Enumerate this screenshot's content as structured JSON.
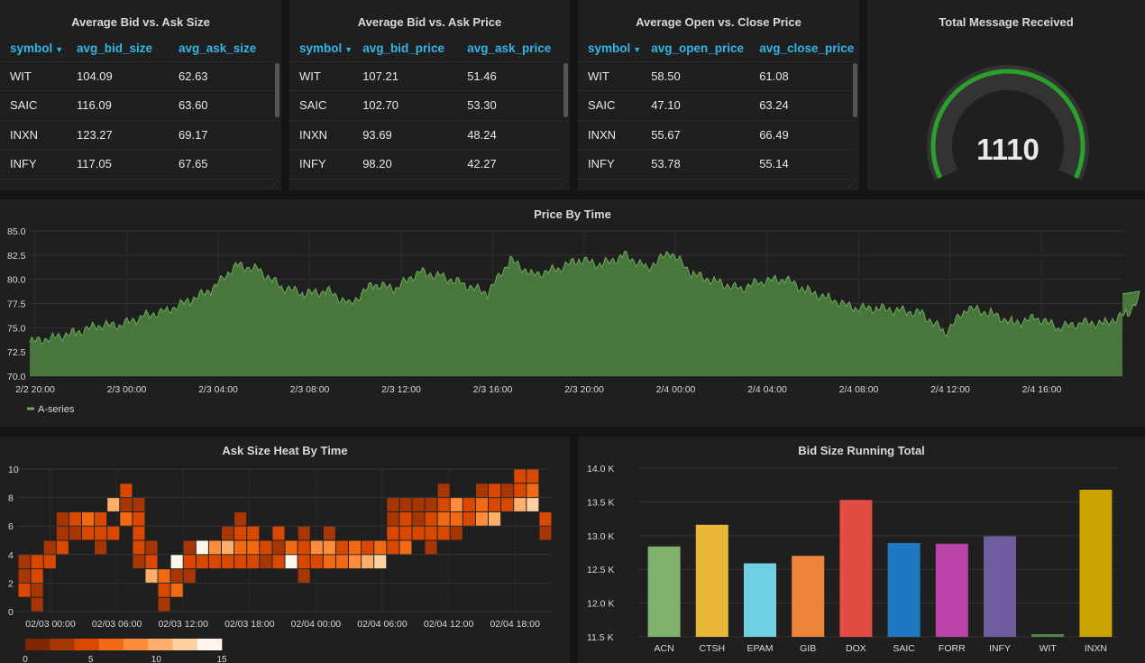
{
  "tables": [
    {
      "title": "Average Bid vs. Ask Size",
      "columns": [
        "symbol",
        "avg_bid_size",
        "avg_ask_size"
      ],
      "rows": [
        [
          "WIT",
          "104.09",
          "62.63"
        ],
        [
          "SAIC",
          "116.09",
          "63.60"
        ],
        [
          "INXN",
          "123.27",
          "69.17"
        ],
        [
          "INFY",
          "117.05",
          "67.65"
        ]
      ]
    },
    {
      "title": "Average Bid vs. Ask Price",
      "columns": [
        "symbol",
        "avg_bid_price",
        "avg_ask_price"
      ],
      "rows": [
        [
          "WIT",
          "107.21",
          "51.46"
        ],
        [
          "SAIC",
          "102.70",
          "53.30"
        ],
        [
          "INXN",
          "93.69",
          "48.24"
        ],
        [
          "INFY",
          "98.20",
          "42.27"
        ]
      ]
    },
    {
      "title": "Average Open vs. Close Price",
      "columns": [
        "symbol",
        "avg_open_price",
        "avg_close_price"
      ],
      "rows": [
        [
          "WIT",
          "58.50",
          "61.08"
        ],
        [
          "SAIC",
          "47.10",
          "63.24"
        ],
        [
          "INXN",
          "55.67",
          "66.49"
        ],
        [
          "INFY",
          "53.78",
          "55.14"
        ]
      ]
    }
  ],
  "gauge": {
    "title": "Total Message Received",
    "value": "1110",
    "fraction": 1.0,
    "color": "#2ca02c"
  },
  "colors": {
    "line_fill": "#508642",
    "line_stroke": "#6ea959"
  },
  "chart_data": [
    {
      "type": "area",
      "title": "Price By Time",
      "x_ticks": [
        "2/2 20:00",
        "2/3 00:00",
        "2/3 04:00",
        "2/3 08:00",
        "2/3 12:00",
        "2/3 16:00",
        "2/3 20:00",
        "2/4 00:00",
        "2/4 04:00",
        "2/4 08:00",
        "2/4 12:00",
        "2/4 16:00"
      ],
      "y_ticks": [
        "70.0",
        "72.5",
        "75.0",
        "77.5",
        "80.0",
        "82.5",
        "85.0"
      ],
      "ylim": [
        70,
        85
      ],
      "legend": "bottom-left",
      "series": [
        {
          "name": "A-series",
          "color": "#6ea959",
          "time_hours_from_start": [
            0,
            1,
            2,
            3,
            4,
            5,
            6,
            7,
            8,
            9,
            10,
            11,
            12,
            13,
            14,
            15,
            16,
            17,
            18,
            19,
            20,
            21,
            22,
            23,
            24,
            25,
            26,
            27,
            28,
            29,
            30,
            31,
            32,
            33,
            34,
            35,
            36,
            37,
            38,
            39,
            40,
            41,
            42,
            43,
            44,
            45,
            46,
            47,
            48,
            48.6
          ],
          "values": [
            73.5,
            74.0,
            74.5,
            75.2,
            75.3,
            76.2,
            76.8,
            77.8,
            79.0,
            81.5,
            81.0,
            79.2,
            78.5,
            78.8,
            77.5,
            79.5,
            79.0,
            80.8,
            80.3,
            79.5,
            78.5,
            82.0,
            80.5,
            81.0,
            82.0,
            81.5,
            82.5,
            81.2,
            82.8,
            80.5,
            79.8,
            79.0,
            79.8,
            80.0,
            78.8,
            78.0,
            77.0,
            77.0,
            76.8,
            76.5,
            74.5,
            77.0,
            76.5,
            75.5,
            76.0,
            75.0,
            75.5,
            75.5,
            76.5,
            78.5
          ]
        }
      ]
    },
    {
      "type": "heatmap",
      "title": "Ask Size Heat By Time",
      "x_ticks": [
        "02/03 00:00",
        "02/03 06:00",
        "02/03 12:00",
        "02/03 18:00",
        "02/04 00:00",
        "02/04 06:00",
        "02/04 12:00",
        "02/04 18:00"
      ],
      "y_ticks": [
        "0",
        "2",
        "4",
        "6",
        "8",
        "10"
      ],
      "ylim": [
        0,
        10
      ],
      "legend": "bottom-left",
      "color_scale": {
        "min": 0,
        "max": 15,
        "ticks": [
          "0",
          "5",
          "10",
          "15"
        ],
        "colors": [
          "#7f2704",
          "#a63603",
          "#d94801",
          "#f16913",
          "#fd8d3c",
          "#fdae6b",
          "#fdd0a2",
          "#fff5eb"
        ]
      },
      "columns": [
        [
          [
            3,
            2
          ],
          [
            2,
            3
          ],
          [
            1,
            4
          ]
        ],
        [
          [
            0,
            2
          ],
          [
            1,
            3
          ],
          [
            2,
            4
          ],
          [
            3,
            5
          ]
        ],
        [
          [
            4,
            3
          ],
          [
            3,
            5
          ]
        ],
        [
          [
            4,
            4
          ],
          [
            5,
            3
          ],
          [
            6,
            2
          ]
        ],
        [
          [
            5,
            3
          ],
          [
            6,
            5
          ]
        ],
        [
          [
            5,
            4
          ],
          [
            6,
            6
          ]
        ],
        [
          [
            4,
            3
          ],
          [
            5,
            4
          ],
          [
            6,
            5
          ]
        ],
        [
          [
            5,
            5
          ],
          [
            7,
            10
          ]
        ],
        [
          [
            6,
            6
          ],
          [
            7,
            3
          ],
          [
            8,
            4
          ]
        ],
        [
          [
            3,
            2
          ],
          [
            4,
            4
          ],
          [
            5,
            5
          ],
          [
            6,
            4
          ],
          [
            7,
            3
          ]
        ],
        [
          [
            3,
            5
          ],
          [
            4,
            3
          ],
          [
            2,
            10
          ]
        ],
        [
          [
            1,
            4
          ],
          [
            2,
            6
          ],
          [
            0,
            3
          ]
        ],
        [
          [
            1,
            6
          ],
          [
            2,
            3
          ],
          [
            3,
            14
          ]
        ],
        [
          [
            2,
            3
          ],
          [
            3,
            5
          ],
          [
            4,
            2
          ]
        ],
        [
          [
            3,
            5
          ],
          [
            4,
            15
          ]
        ],
        [
          [
            3,
            5
          ],
          [
            4,
            9
          ]
        ],
        [
          [
            3,
            4
          ],
          [
            4,
            10
          ],
          [
            5,
            3
          ]
        ],
        [
          [
            3,
            5
          ],
          [
            4,
            7
          ],
          [
            5,
            4
          ],
          [
            6,
            2
          ]
        ],
        [
          [
            3,
            4
          ],
          [
            4,
            6
          ],
          [
            5,
            5
          ]
        ],
        [
          [
            3,
            3
          ],
          [
            4,
            4
          ]
        ],
        [
          [
            3,
            4
          ],
          [
            4,
            3
          ],
          [
            5,
            4
          ]
        ],
        [
          [
            3,
            15
          ],
          [
            4,
            6
          ]
        ],
        [
          [
            2,
            3
          ],
          [
            3,
            5
          ],
          [
            4,
            4
          ],
          [
            5,
            3
          ]
        ],
        [
          [
            3,
            5
          ],
          [
            4,
            9
          ]
        ],
        [
          [
            3,
            6
          ],
          [
            4,
            8
          ],
          [
            5,
            3
          ]
        ],
        [
          [
            3,
            7
          ],
          [
            4,
            5
          ]
        ],
        [
          [
            3,
            8
          ],
          [
            4,
            6
          ]
        ],
        [
          [
            3,
            11
          ],
          [
            4,
            5
          ]
        ],
        [
          [
            3,
            13
          ],
          [
            4,
            6
          ]
        ],
        [
          [
            4,
            5
          ],
          [
            5,
            4
          ],
          [
            6,
            3
          ],
          [
            7,
            2
          ]
        ],
        [
          [
            4,
            6
          ],
          [
            5,
            4
          ],
          [
            6,
            5
          ],
          [
            7,
            3
          ]
        ],
        [
          [
            5,
            4
          ],
          [
            6,
            3
          ],
          [
            7,
            2
          ]
        ],
        [
          [
            4,
            3
          ],
          [
            5,
            5
          ],
          [
            6,
            4
          ],
          [
            7,
            3
          ]
        ],
        [
          [
            5,
            4
          ],
          [
            6,
            6
          ],
          [
            7,
            4
          ],
          [
            8,
            3
          ]
        ],
        [
          [
            5,
            3
          ],
          [
            6,
            6
          ],
          [
            7,
            8
          ]
        ],
        [
          [
            6,
            5
          ],
          [
            7,
            4
          ]
        ],
        [
          [
            6,
            9
          ],
          [
            7,
            6
          ],
          [
            8,
            3
          ]
        ],
        [
          [
            6,
            11
          ],
          [
            7,
            5
          ],
          [
            8,
            4
          ]
        ],
        [
          [
            7,
            5
          ],
          [
            8,
            3
          ]
        ],
        [
          [
            7,
            11
          ],
          [
            8,
            5
          ],
          [
            9,
            4
          ]
        ],
        [
          [
            7,
            12
          ],
          [
            8,
            6
          ],
          [
            9,
            4
          ]
        ],
        [
          [
            5,
            2
          ],
          [
            6,
            4
          ]
        ]
      ]
    },
    {
      "type": "bar",
      "title": "Bid Size Running Total",
      "categories": [
        "ACN",
        "CTSH",
        "EPAM",
        "GIB",
        "DOX",
        "SAIC",
        "FORR",
        "INFY",
        "WIT",
        "INXN"
      ],
      "values": [
        12840,
        13160,
        12590,
        12700,
        13530,
        12890,
        12880,
        12990,
        11540,
        13680
      ],
      "colors": [
        "#7eb26d",
        "#eab839",
        "#6ed0e0",
        "#ef843c",
        "#e24d42",
        "#1f78c1",
        "#ba43a9",
        "#705da0",
        "#508642",
        "#cca300"
      ],
      "y_ticks": [
        "11.5 K",
        "12.0 K",
        "12.5 K",
        "13.0 K",
        "13.5 K",
        "14.0 K"
      ],
      "ylim": [
        11500,
        14000
      ]
    }
  ]
}
